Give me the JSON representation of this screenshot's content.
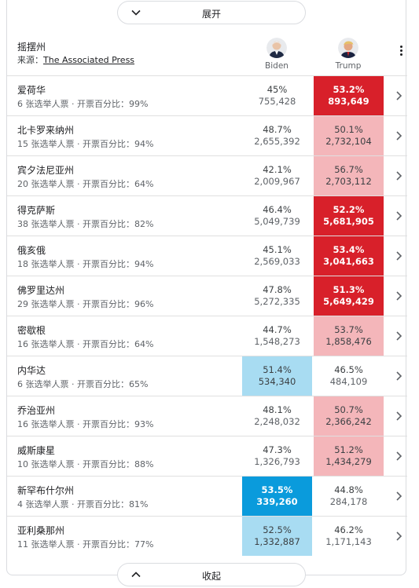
{
  "expand_label": "展开",
  "collapse_label": "收起",
  "header": {
    "title": "摇摆州",
    "source_prefix": "来源：",
    "source_link": "The Associated Press",
    "candidates": [
      {
        "name": "Biden",
        "avatar": "biden-avatar"
      },
      {
        "name": "Trump",
        "avatar": "trump-avatar"
      }
    ]
  },
  "colors": {
    "strong_rep": "#d8202a",
    "light_rep": "#f4b6ba",
    "strong_dem": "#0a9bdc",
    "light_dem": "#a8dcf2"
  },
  "rows": [
    {
      "state": "爱荷华",
      "sub": "6 张选举人票 · 开票百分比：99%",
      "b_pct": "45%",
      "b_votes": "755,428",
      "t_pct": "53.2%",
      "t_votes": "893,649",
      "winner": "t",
      "style": "strong"
    },
    {
      "state": "北卡罗来纳州",
      "sub": "15 张选举人票 · 开票百分比：94%",
      "b_pct": "48.7%",
      "b_votes": "2,655,392",
      "t_pct": "50.1%",
      "t_votes": "2,732,104",
      "winner": "t",
      "style": "light"
    },
    {
      "state": "宾夕法尼亚州",
      "sub": "20 张选举人票 · 开票百分比：64%",
      "b_pct": "42.1%",
      "b_votes": "2,009,967",
      "t_pct": "56.7%",
      "t_votes": "2,703,112",
      "winner": "t",
      "style": "light"
    },
    {
      "state": "得克萨斯",
      "sub": "38 张选举人票 · 开票百分比：82%",
      "b_pct": "46.4%",
      "b_votes": "5,049,739",
      "t_pct": "52.2%",
      "t_votes": "5,681,905",
      "winner": "t",
      "style": "strong"
    },
    {
      "state": "俄亥俄",
      "sub": "18 张选举人票 · 开票百分比：94%",
      "b_pct": "45.1%",
      "b_votes": "2,569,033",
      "t_pct": "53.4%",
      "t_votes": "3,041,663",
      "winner": "t",
      "style": "strong"
    },
    {
      "state": "佛罗里达州",
      "sub": "29 张选举人票 · 开票百分比：96%",
      "b_pct": "47.8%",
      "b_votes": "5,272,335",
      "t_pct": "51.3%",
      "t_votes": "5,649,429",
      "winner": "t",
      "style": "strong"
    },
    {
      "state": "密歇根",
      "sub": "16 张选举人票 · 开票百分比：64%",
      "b_pct": "44.7%",
      "b_votes": "1,548,273",
      "t_pct": "53.7%",
      "t_votes": "1,858,476",
      "winner": "t",
      "style": "light"
    },
    {
      "state": "内华达",
      "sub": "6 张选举人票 · 开票百分比：65%",
      "b_pct": "51.4%",
      "b_votes": "534,340",
      "t_pct": "46.5%",
      "t_votes": "484,109",
      "winner": "b",
      "style": "light"
    },
    {
      "state": "乔治亚州",
      "sub": "16 张选举人票 · 开票百分比：93%",
      "b_pct": "48.1%",
      "b_votes": "2,248,032",
      "t_pct": "50.7%",
      "t_votes": "2,366,242",
      "winner": "t",
      "style": "light"
    },
    {
      "state": "威斯康星",
      "sub": "10 张选举人票 · 开票百分比：88%",
      "b_pct": "47.3%",
      "b_votes": "1,326,793",
      "t_pct": "51.2%",
      "t_votes": "1,434,279",
      "winner": "t",
      "style": "light"
    },
    {
      "state": "新罕布什尔州",
      "sub": "4 张选举人票 · 开票百分比：81%",
      "b_pct": "53.5%",
      "b_votes": "339,260",
      "t_pct": "44.8%",
      "t_votes": "284,178",
      "winner": "b",
      "style": "strong"
    },
    {
      "state": "亚利桑那州",
      "sub": "11 张选举人票 · 开票百分比：77%",
      "b_pct": "52.5%",
      "b_votes": "1,332,887",
      "t_pct": "46.2%",
      "t_votes": "1,171,143",
      "winner": "b",
      "style": "light"
    }
  ]
}
